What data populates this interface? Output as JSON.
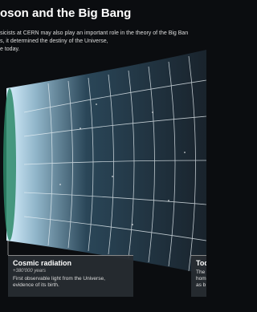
{
  "header": {
    "title": "oson and the Big Bang",
    "lines": [
      "sicists at CERN may also play an important role in the theory of the Big Ban",
      "s, it determined the destiny of the Universe,",
      "e today."
    ]
  },
  "panels": [
    {
      "title": "Cosmic radiation",
      "subtitle": "+380'000 years",
      "lines": [
        "First observable light from the Universe,",
        "evidence of its birth."
      ]
    },
    {
      "title": "Tod",
      "lines": [
        "The",
        "hom",
        "as b"
      ]
    }
  ]
}
